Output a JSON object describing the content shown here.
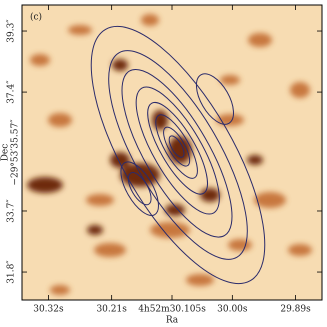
{
  "chart_data": {
    "type": "image",
    "panel_label": "(c)",
    "x_label": "Ra",
    "y_label": [
      "Dec",
      "−29°53′35.57″"
    ],
    "xlim": [
      30.366,
      29.844
    ],
    "ylim": [
      30.93,
      40.11
    ],
    "xticks": [
      {
        "value": 30.32,
        "label": "30.32s"
      },
      {
        "value": 30.21,
        "label": "30.21s"
      },
      {
        "value": 30.105,
        "label": "4h52m30.105s"
      },
      {
        "value": 30.0,
        "label": "30.00s"
      },
      {
        "value": 29.89,
        "label": "29.89s"
      }
    ],
    "yticks": [
      {
        "value": 39.3,
        "label": "39.3″"
      },
      {
        "value": 37.4,
        "label": "37.4″"
      },
      {
        "value": 33.7,
        "label": "33.7″"
      },
      {
        "value": 31.8,
        "label": "31.8″"
      }
    ],
    "contour_color": "#2b2b6b"
  }
}
